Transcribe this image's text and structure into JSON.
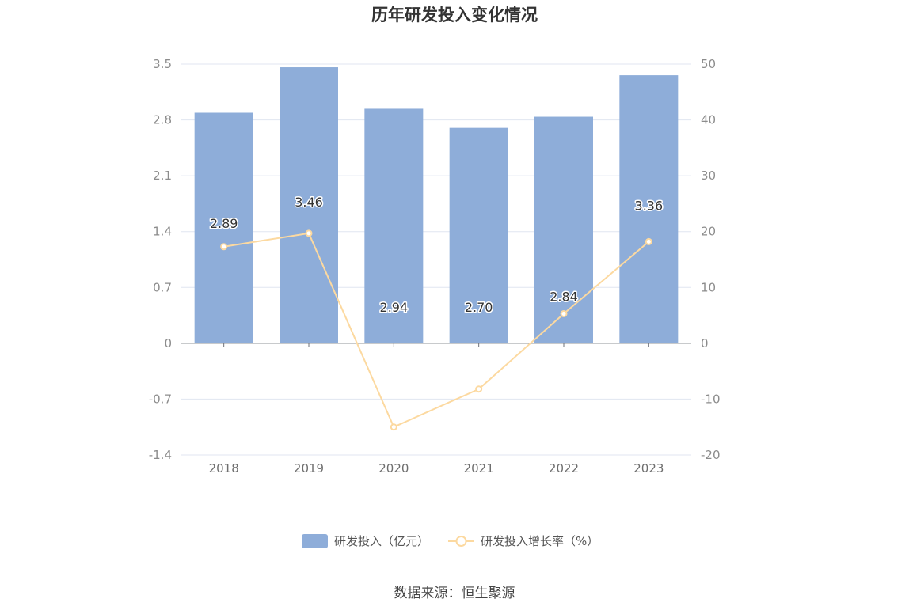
{
  "chart_data": {
    "type": "bar",
    "title": "历年研发投入变化情况",
    "categories": [
      "2018",
      "2019",
      "2020",
      "2021",
      "2022",
      "2023"
    ],
    "series": [
      {
        "name": "研发投入（亿元）",
        "type": "bar",
        "axis": "left",
        "values": [
          2.89,
          3.46,
          2.94,
          2.7,
          2.84,
          3.36
        ],
        "value_labels": [
          "2.89",
          "3.46",
          "2.94",
          "2.70",
          "2.84",
          "3.36"
        ],
        "color": "#8eadd9"
      },
      {
        "name": "研发投入增长率（%）",
        "type": "line",
        "axis": "right",
        "values": [
          17.3,
          19.7,
          -15.0,
          -8.2,
          5.3,
          18.2
        ],
        "color": "#fcd9a0"
      }
    ],
    "left_axis": {
      "ylim": [
        -1.4,
        3.5
      ],
      "ticks": [
        "3.5",
        "2.8",
        "2.1",
        "1.4",
        "0.7",
        "0",
        "-0.7",
        "-1.4"
      ]
    },
    "right_axis": {
      "ylim": [
        -20,
        50
      ],
      "ticks": [
        "50",
        "40",
        "30",
        "20",
        "10",
        "0",
        "-10",
        "-20"
      ]
    },
    "grid": true,
    "legend_position": "bottom"
  },
  "source_text": "数据来源：恒生聚源"
}
